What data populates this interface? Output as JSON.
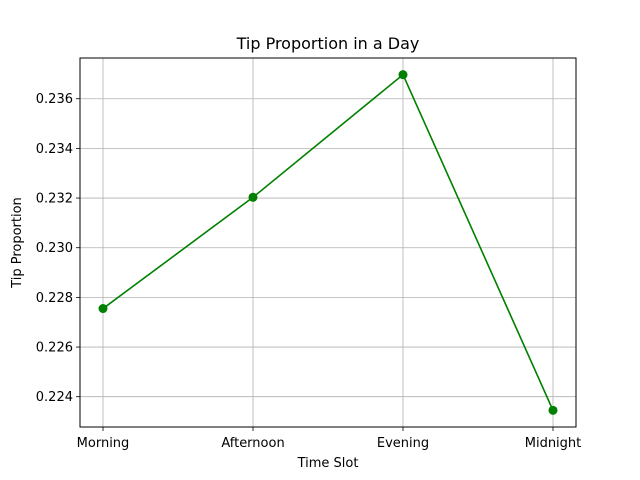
{
  "chart_data": {
    "type": "line",
    "title": "Tip Proportion in a Day",
    "xlabel": "Time Slot",
    "ylabel": "Tip Proportion",
    "categories": [
      "Morning",
      "Afternoon",
      "Evening",
      "Midnight"
    ],
    "series": [
      {
        "values": [
          0.22755,
          0.23203,
          0.23697,
          0.22345
        ],
        "color": "#008000",
        "marker": "circle"
      }
    ],
    "yticks": [
      "0.224",
      "0.226",
      "0.228",
      "0.230",
      "0.232",
      "0.234",
      "0.236"
    ],
    "ylim": [
      0.22278,
      0.23764
    ],
    "grid": true,
    "legend": "none"
  }
}
